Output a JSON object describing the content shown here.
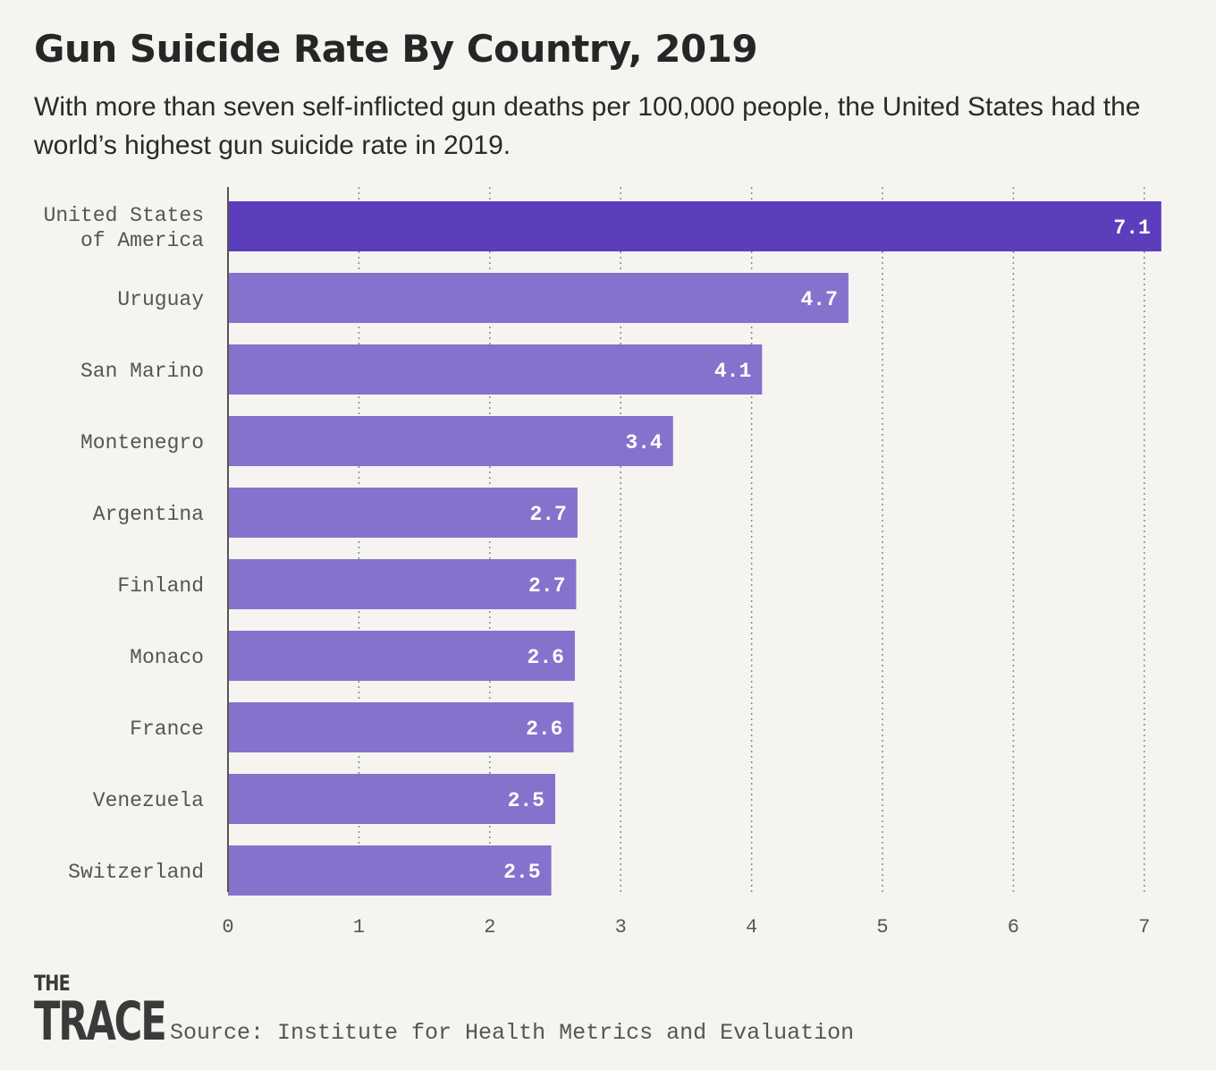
{
  "title": "Gun Suicide Rate By Country, 2019",
  "subtitle": "With more than seven self-inflicted gun deaths per 100,000 people, the United States had the world’s highest gun suicide rate in 2019.",
  "source": "Source: Institute for Health Metrics and Evaluation",
  "logo": {
    "line1": "THE",
    "line2": "TRACE"
  },
  "colors": {
    "highlight": "#5c3dbb",
    "bar": "#8672cc",
    "background": "#f5f4f0",
    "grid": "#888888"
  },
  "chart_data": {
    "type": "bar",
    "orientation": "horizontal",
    "title": "Gun Suicide Rate By Country, 2019",
    "categories": [
      [
        "United States",
        "of America"
      ],
      [
        "Uruguay"
      ],
      [
        "San Marino"
      ],
      [
        "Montenegro"
      ],
      [
        "Argentina"
      ],
      [
        "Finland"
      ],
      [
        "Monaco"
      ],
      [
        "France"
      ],
      [
        "Venezuela"
      ],
      [
        "Switzerland"
      ]
    ],
    "values": [
      7.13,
      4.74,
      4.08,
      3.4,
      2.67,
      2.66,
      2.65,
      2.64,
      2.5,
      2.47
    ],
    "value_labels": [
      "7.1",
      "4.7",
      "4.1",
      "3.4",
      "2.7",
      "2.7",
      "2.6",
      "2.6",
      "2.5",
      "2.5"
    ],
    "highlight_index": 0,
    "xlim": [
      0,
      7
    ],
    "xticks": [
      "0",
      "1",
      "2",
      "3",
      "4",
      "5",
      "6",
      "7"
    ],
    "grid": "vertical dotted",
    "legend": "none"
  }
}
